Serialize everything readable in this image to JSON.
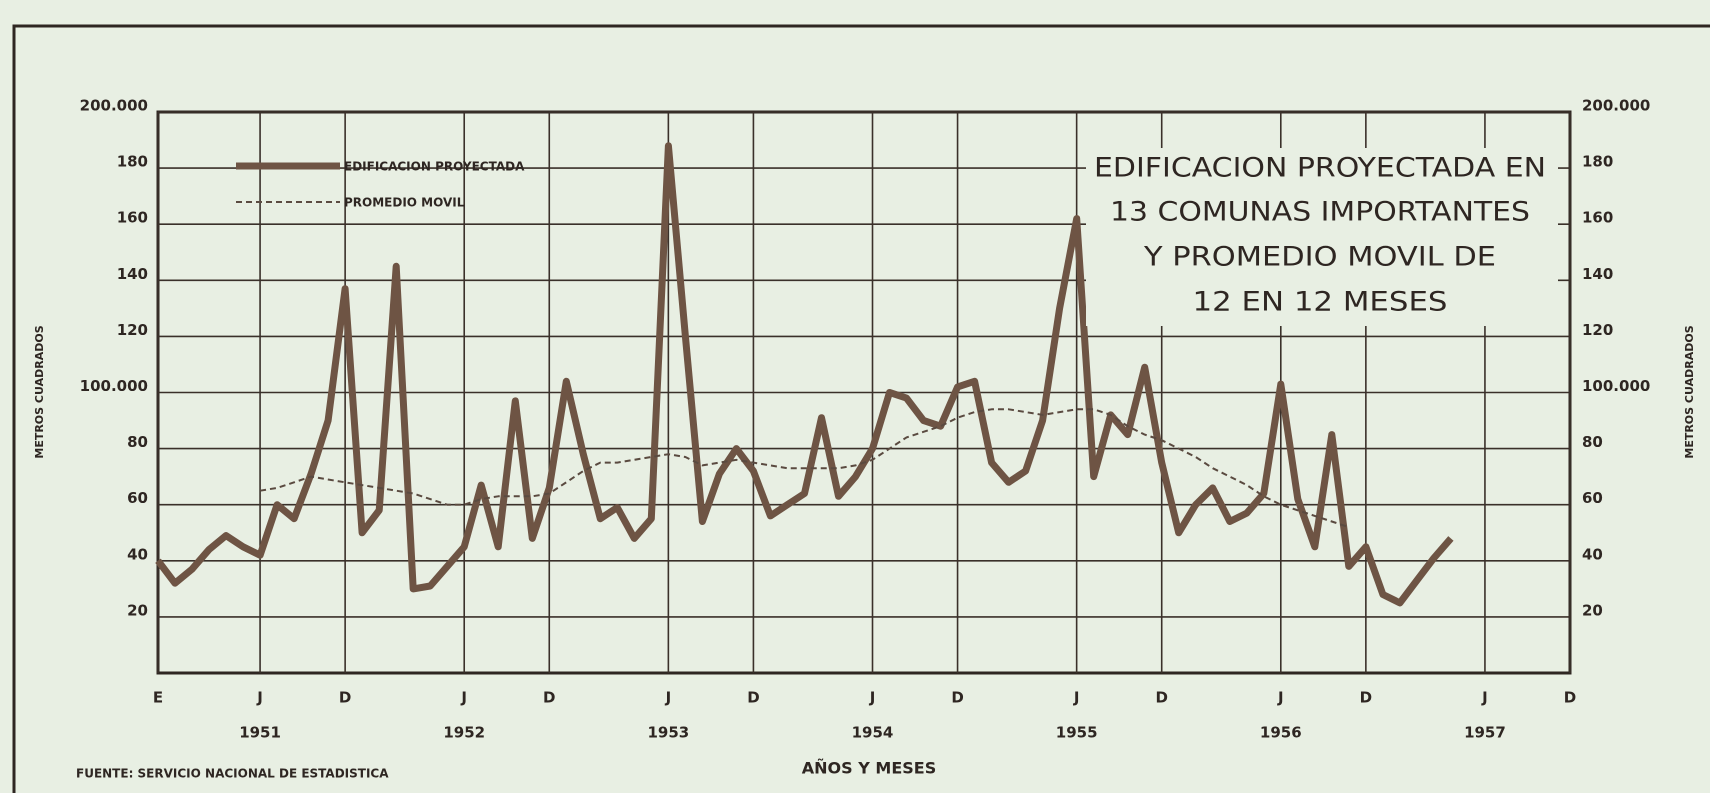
{
  "chart_data": {
    "type": "line",
    "title": [
      "EDIFICACION PROYECTADA EN",
      "13 COMUNAS IMPORTANTES",
      "Y PROMEDIO MOVIL DE",
      "12 EN 12 MESES"
    ],
    "y_label": "METROS CUADRADOS",
    "x_label": "AÑOS Y MESES",
    "source": "FUENTE: SERVICIO NACIONAL DE ESTADISTICA",
    "x": [
      0,
      1,
      2,
      3,
      4,
      5,
      6,
      7,
      8,
      9,
      10,
      11,
      12,
      13,
      14,
      15,
      16,
      17,
      18,
      19,
      20,
      21,
      22,
      23,
      24,
      25,
      26,
      27,
      28,
      29,
      30,
      31,
      32,
      33,
      34,
      35,
      36,
      37,
      38,
      39,
      40,
      41,
      42,
      43,
      44,
      45,
      46,
      47,
      48,
      49,
      50,
      51,
      52,
      53,
      54,
      55,
      56,
      57,
      58,
      59,
      60,
      61,
      62,
      63,
      64,
      65,
      66,
      67,
      68,
      69,
      70,
      71,
      72,
      73,
      74,
      75,
      76
    ],
    "series": [
      {
        "name": "EDIFICACION PROYECTADA",
        "color": "#6e5444",
        "style": "solid",
        "values": [
          40,
          32,
          37,
          44,
          49,
          45,
          42,
          60,
          55,
          71,
          90,
          137,
          50,
          58,
          145,
          30,
          31,
          38,
          45,
          67,
          45,
          97,
          48,
          66,
          104,
          78,
          55,
          59,
          48,
          55,
          188,
          120,
          54,
          71,
          80,
          72,
          56,
          60,
          64,
          91,
          63,
          70,
          80,
          100,
          98,
          90,
          88,
          102,
          104,
          75,
          68,
          72,
          90,
          130,
          162,
          70,
          92,
          85,
          109,
          75,
          50,
          60,
          66,
          54,
          57,
          64,
          103,
          62,
          45,
          85,
          38,
          45,
          28,
          25,
          33,
          41,
          48
        ]
      },
      {
        "name": "PROMEDIO MOVIL",
        "color": "#5a4a40",
        "style": "dashed",
        "values": [
          null,
          null,
          null,
          null,
          null,
          null,
          65,
          66,
          68,
          70,
          69,
          68,
          67,
          66,
          65,
          64,
          62,
          60,
          60,
          62,
          63,
          63,
          63,
          64,
          68,
          72,
          75,
          75,
          76,
          77,
          78,
          77,
          74,
          75,
          76,
          75,
          74,
          73,
          73,
          73,
          73,
          74,
          76,
          80,
          84,
          86,
          88,
          91,
          93,
          94,
          94,
          93,
          92,
          93,
          94,
          94,
          92,
          88,
          85,
          83,
          80,
          77,
          73,
          70,
          67,
          63,
          60,
          58,
          56,
          54,
          52,
          null,
          null,
          null,
          null,
          null,
          null
        ]
      }
    ],
    "xlim": [
      0,
      83
    ],
    "xticks": [
      {
        "value": 0,
        "label": "E"
      },
      {
        "value": 6,
        "label": "J"
      },
      {
        "value": 11,
        "label": "D"
      },
      {
        "value": 18,
        "label": "J"
      },
      {
        "value": 23,
        "label": "D"
      },
      {
        "value": 30,
        "label": "J"
      },
      {
        "value": 35,
        "label": "D"
      },
      {
        "value": 42,
        "label": "J"
      },
      {
        "value": 47,
        "label": "D"
      },
      {
        "value": 54,
        "label": "J"
      },
      {
        "value": 59,
        "label": "D"
      },
      {
        "value": 66,
        "label": "J"
      },
      {
        "value": 71,
        "label": "D"
      },
      {
        "value": 78,
        "label": "J"
      },
      {
        "value": 83,
        "label": "D"
      }
    ],
    "year_labels": [
      {
        "value": 6,
        "label": "1951"
      },
      {
        "value": 18,
        "label": "1952"
      },
      {
        "value": 30,
        "label": "1953"
      },
      {
        "value": 42,
        "label": "1954"
      },
      {
        "value": 54,
        "label": "1955"
      },
      {
        "value": 66,
        "label": "1956"
      },
      {
        "value": 78,
        "label": "1957"
      }
    ],
    "ylim": [
      0,
      200
    ],
    "yticks": [
      20,
      40,
      60,
      80,
      {
        "value": 100,
        "label": "100.000"
      },
      120,
      140,
      160,
      180,
      {
        "value": 200,
        "label": "200.000"
      }
    ],
    "grid": true
  }
}
